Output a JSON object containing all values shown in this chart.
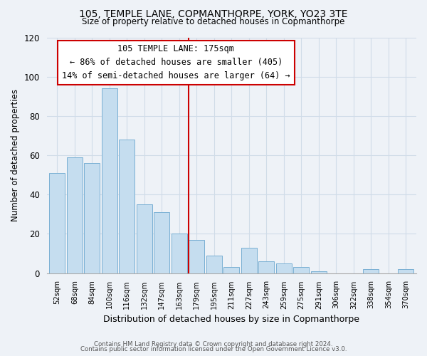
{
  "title": "105, TEMPLE LANE, COPMANTHORPE, YORK, YO23 3TE",
  "subtitle": "Size of property relative to detached houses in Copmanthorpe",
  "xlabel": "Distribution of detached houses by size in Copmanthorpe",
  "ylabel": "Number of detached properties",
  "bar_color": "#c5ddef",
  "bar_edge_color": "#7ab0d4",
  "categories": [
    "52sqm",
    "68sqm",
    "84sqm",
    "100sqm",
    "116sqm",
    "132sqm",
    "147sqm",
    "163sqm",
    "179sqm",
    "195sqm",
    "211sqm",
    "227sqm",
    "243sqm",
    "259sqm",
    "275sqm",
    "291sqm",
    "306sqm",
    "322sqm",
    "338sqm",
    "354sqm",
    "370sqm"
  ],
  "values": [
    51,
    59,
    56,
    94,
    68,
    35,
    31,
    20,
    17,
    9,
    3,
    13,
    6,
    5,
    3,
    1,
    0,
    0,
    2,
    0,
    2
  ],
  "ylim": [
    0,
    120
  ],
  "yticks": [
    0,
    20,
    40,
    60,
    80,
    100,
    120
  ],
  "annotation_title": "105 TEMPLE LANE: 175sqm",
  "annotation_line1": "← 86% of detached houses are smaller (405)",
  "annotation_line2": "14% of semi-detached houses are larger (64) →",
  "annotation_box_color": "#ffffff",
  "annotation_box_edge": "#cc0000",
  "vline_color": "#cc0000",
  "footer1": "Contains HM Land Registry data © Crown copyright and database right 2024.",
  "footer2": "Contains public sector information licensed under the Open Government Licence v3.0.",
  "background_color": "#eef2f7",
  "grid_color": "#d0dce8"
}
